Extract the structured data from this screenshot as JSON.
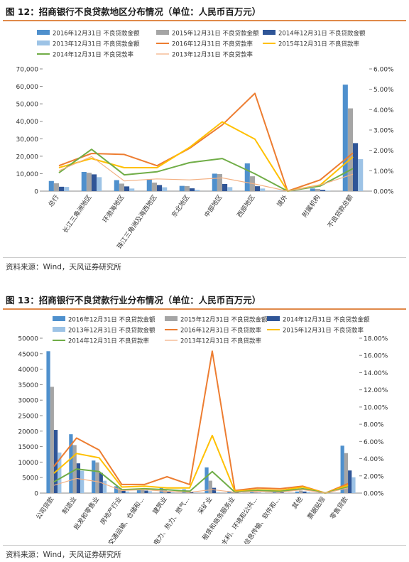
{
  "chart_data": [
    {
      "type": "bar",
      "title": "图 12：招商银行不良贷款地区分布情况（单位：人民币百万元）",
      "source": "资料来源：Wind，天风证券研究所",
      "categories": [
        "总行",
        "长江三角洲地区",
        "环渤海地区",
        "珠江三角洲及海西地区",
        "东北地区",
        "中部地区",
        "西部地区",
        "境外",
        "附属机构",
        "不良贷款总额"
      ],
      "y_left": {
        "min": 0,
        "max": 70000,
        "step": 10000,
        "ticks": [
          "0",
          "10,000",
          "20,000",
          "30,000",
          "40,000",
          "50,000",
          "60,000",
          "70,000"
        ]
      },
      "y_right": {
        "min": 0,
        "max": 0.06,
        "step": 0.01,
        "ticks": [
          "0.00%",
          "1.00%",
          "2.00%",
          "3.00%",
          "4.00%",
          "5.00%",
          "6.00%"
        ]
      },
      "legend": [
        "2016年12月31日 不良贷款金额",
        "2015年12月31日 不良贷款金额",
        "2014年12月31日 不良贷款金额",
        "2013年12月31日 不良贷款金额",
        "2016年12月31日 不良贷款率",
        "2015年12月31日 不良贷款率",
        "2014年12月31日 不良贷款率",
        "2013年12月31日 不良贷款率"
      ],
      "bar_series": [
        {
          "name": "2016年12月31日 不良贷款金额",
          "color": "#4f90cd",
          "values": [
            5800,
            11000,
            6300,
            6800,
            3000,
            10000,
            15900,
            150,
            1500,
            61000
          ]
        },
        {
          "name": "2015年12月31日 不良贷款金额",
          "color": "#a5a5a5",
          "values": [
            4500,
            10500,
            4300,
            4900,
            2900,
            9800,
            8500,
            50,
            1200,
            47400
          ]
        },
        {
          "name": "2014年12月31日 不良贷款金额",
          "color": "#2f5597",
          "values": [
            2500,
            9600,
            2700,
            3500,
            1600,
            4100,
            2800,
            10,
            700,
            27500
          ]
        },
        {
          "name": "2013年12月31日 不良贷款金额",
          "color": "#9dc3e6",
          "values": [
            2400,
            8000,
            1500,
            2200,
            700,
            2300,
            1500,
            0,
            300,
            18300
          ]
        }
      ],
      "line_series": [
        {
          "name": "2016年12月31日 不良贷款率",
          "color": "#ed7d31",
          "values": [
            0.0125,
            0.0185,
            0.018,
            0.0125,
            0.021,
            0.0325,
            0.048,
            0.0,
            0.0055,
            0.0187
          ]
        },
        {
          "name": "2015年12月31日 不良贷款率",
          "color": "#ffc000",
          "values": [
            0.0115,
            0.016,
            0.0115,
            0.0115,
            0.0215,
            0.034,
            0.0255,
            0.0,
            0.003,
            0.0168
          ]
        },
        {
          "name": "2014年12月31日 不良贷款率",
          "color": "#70ad47",
          "values": [
            0.009,
            0.0205,
            0.008,
            0.0095,
            0.014,
            0.016,
            0.0085,
            0.0,
            0.0025,
            0.0111
          ]
        },
        {
          "name": "2013年12月31日 不良贷款率",
          "color": "#f4b183",
          "values": [
            0.01,
            0.017,
            0.005,
            0.006,
            0.0055,
            0.0065,
            0.0035,
            0.0,
            0.003,
            0.0083
          ]
        }
      ]
    },
    {
      "type": "bar",
      "title": "图 13：招商银行不良贷款行业分布情况（单位：人民币百万元）",
      "source": "资料来源：Wind，天风证券研究所",
      "categories": [
        "公司贷款",
        "制造业",
        "批发和零售业",
        "房地产行业",
        "交通运输、仓储和...",
        "建筑业",
        "电力、热力、燃气...",
        "采矿业",
        "租赁和商务服务业",
        "水利、环境和公共...",
        "信息传输、软件和...",
        "其他",
        "票据贴现",
        "零售贷款"
      ],
      "y_left": {
        "min": 0,
        "max": 50000,
        "step": 5000,
        "ticks": [
          "0",
          "5000",
          "10000",
          "15000",
          "20000",
          "25000",
          "30000",
          "35000",
          "40000",
          "45000",
          "50000"
        ]
      },
      "y_right": {
        "min": 0,
        "max": 0.18,
        "step": 0.02,
        "ticks": [
          "0.00%",
          "2.00%",
          "4.00%",
          "6.00%",
          "8.00%",
          "10.00%",
          "12.00%",
          "14.00%",
          "16.00%",
          "18.00%"
        ]
      },
      "legend": [
        "2016年12月31日 不良贷款金额",
        "2015年12月31日 不良贷款金额",
        "2014年12月31日 不良贷款金额",
        "2013年12月31日 不良贷款金额",
        "2016年12月31日 不良贷款率",
        "2015年12月31日 不良贷款率",
        "2014年12月31日 不良贷款率",
        "2013年12月31日 不良贷款率"
      ],
      "bar_series": [
        {
          "name": "2016年12月31日 不良贷款金额",
          "color": "#4f90cd",
          "values": [
            45800,
            19000,
            10500,
            2200,
            1400,
            1700,
            1200,
            8300,
            600,
            300,
            700,
            500,
            0,
            15300
          ]
        },
        {
          "name": "2015年12月31日 不良贷款金额",
          "color": "#a5a5a5",
          "values": [
            34300,
            15500,
            9900,
            1600,
            1200,
            900,
            900,
            4000,
            300,
            300,
            300,
            800,
            0,
            12900
          ]
        },
        {
          "name": "2014年12月31日 不良贷款金额",
          "color": "#2f5597",
          "values": [
            20400,
            9600,
            6500,
            1000,
            800,
            500,
            300,
            1700,
            200,
            100,
            200,
            500,
            0,
            7300
          ]
        },
        {
          "name": "2013年12月31日 不良贷款金额",
          "color": "#9dc3e6",
          "values": [
            13100,
            7200,
            4000,
            500,
            600,
            300,
            200,
            300,
            100,
            100,
            100,
            400,
            0,
            5100
          ]
        }
      ],
      "line_series": [
        {
          "name": "2016年12月31日 不良贷款率",
          "color": "#ed7d31",
          "values": [
            0.031,
            0.064,
            0.05,
            0.01,
            0.01,
            0.019,
            0.01,
            0.165,
            0.003,
            0.006,
            0.005,
            0.008,
            0.0,
            0.011
          ]
        },
        {
          "name": "2015年12月31日 不良贷款率",
          "color": "#ffc000",
          "values": [
            0.023,
            0.046,
            0.041,
            0.007,
            0.008,
            0.006,
            0.006,
            0.067,
            0.002,
            0.004,
            0.003,
            0.007,
            0.0,
            0.009
          ]
        },
        {
          "name": "2014年12月31日 不良贷款率",
          "color": "#70ad47",
          "values": [
            0.013,
            0.028,
            0.025,
            0.004,
            0.005,
            0.004,
            0.002,
            0.025,
            0.001,
            0.003,
            0.002,
            0.005,
            0.0,
            0.007
          ]
        },
        {
          "name": "2013年12月31日 不良贷款率",
          "color": "#f4b183",
          "values": [
            0.009,
            0.017,
            0.013,
            0.003,
            0.004,
            0.002,
            0.001,
            0.004,
            0.001,
            0.002,
            0.001,
            0.004,
            0.0,
            0.006
          ]
        }
      ]
    }
  ]
}
